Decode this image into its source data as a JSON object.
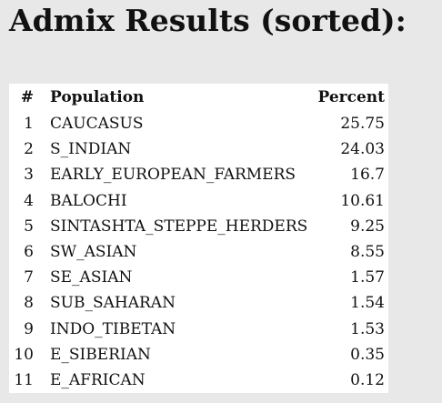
{
  "title": "Admix Results (sorted):",
  "table": {
    "header": [
      "#",
      "Population",
      "Percent"
    ],
    "rows": [
      [
        "1",
        "CAUCASUS",
        "25.75"
      ],
      [
        "2",
        "S_INDIAN",
        "24.03"
      ],
      [
        "3",
        "EARLY_EUROPEAN_FARMERS",
        "16.7"
      ],
      [
        "4",
        "BALOCHI",
        "10.61"
      ],
      [
        "5",
        "SINTASHTA_STEPPE_HERDERS",
        "9.25"
      ],
      [
        "6",
        "SW_ASIAN",
        "8.55"
      ],
      [
        "7",
        "SE_ASIAN",
        "1.57"
      ],
      [
        "8",
        "SUB_SAHARAN",
        "1.54"
      ],
      [
        "9",
        "INDO_TIBETAN",
        "1.53"
      ],
      [
        "10",
        "E_SIBERIAN",
        "0.35"
      ],
      [
        "11",
        "E_AFRICAN",
        "0.12"
      ]
    ]
  }
}
